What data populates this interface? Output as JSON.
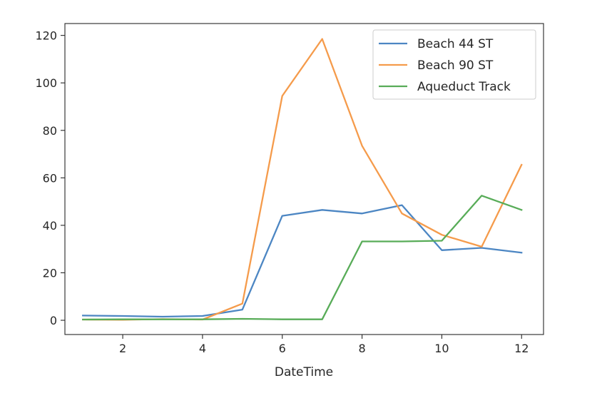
{
  "chart_data": {
    "type": "line",
    "xlabel": "DateTime",
    "ylabel": "",
    "xlim": [
      0.55,
      12.55
    ],
    "ylim": [
      -6,
      125
    ],
    "xticks": [
      2,
      4,
      6,
      8,
      10,
      12
    ],
    "yticks": [
      0,
      20,
      40,
      60,
      80,
      100,
      120
    ],
    "x": [
      1,
      2,
      3,
      4,
      5,
      6,
      7,
      8,
      9,
      10,
      11,
      12
    ],
    "grid": false,
    "legend_position": "top-right",
    "series": [
      {
        "name": "Beach 44 ST",
        "color": "#4c86c3",
        "values": [
          2,
          1.8,
          1.5,
          1.8,
          4.5,
          44,
          46.5,
          45,
          48.5,
          29.5,
          30.5,
          28.5
        ]
      },
      {
        "name": "Beach 90 ST",
        "color": "#f59b4b",
        "values": [
          0.3,
          0.2,
          0.5,
          0.3,
          7,
          94.5,
          118.5,
          73.5,
          45,
          36,
          31,
          65.5
        ]
      },
      {
        "name": "Aqueduct Track",
        "color": "#58ac58",
        "values": [
          0.3,
          0.4,
          0.4,
          0.4,
          0.6,
          0.4,
          0.4,
          33.2,
          33.2,
          33.5,
          52.5,
          46.5
        ]
      }
    ]
  }
}
